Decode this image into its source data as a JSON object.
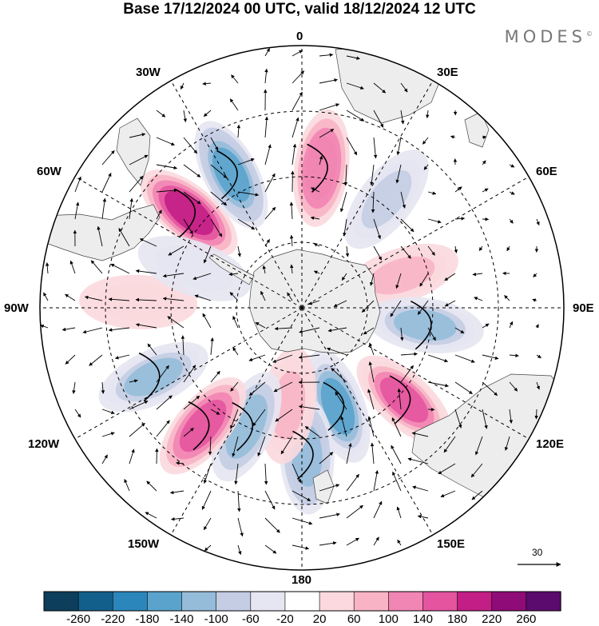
{
  "title": "Base 17/12/2024 00 UTC, valid 18/12/2024 12 UTC",
  "brand": "MODES",
  "brand_mark": "©",
  "longitude_labels": {
    "lon_0": "0",
    "lon_30e": "30E",
    "lon_60e": "60E",
    "lon_90e": "90E",
    "lon_120e": "120E",
    "lon_150e": "150E",
    "lon_180": "180",
    "lon_150w": "150W",
    "lon_120w": "120W",
    "lon_90w": "90W",
    "lon_60w": "60W",
    "lon_30w": "30W"
  },
  "reference_vector": {
    "label": "30"
  },
  "colorbar": {
    "labels": [
      "-260",
      "-220",
      "-180",
      "-140",
      "-100",
      "-60",
      "-20",
      "20",
      "60",
      "100",
      "140",
      "180",
      "220",
      "260"
    ],
    "colors": [
      "#0d3e5c",
      "#135f8c",
      "#2b86bb",
      "#5aa3cc",
      "#95bcd9",
      "#c4cde3",
      "#e6e6f2",
      "#ffffff",
      "#fbd9de",
      "#f8b4c5",
      "#f185b3",
      "#e4549f",
      "#c21e86",
      "#8f0b78",
      "#5b0a6e"
    ]
  },
  "anomaly_centers": [
    {
      "lon": -50,
      "lat": -45,
      "value": 200
    },
    {
      "lon": -28,
      "lat": -44,
      "value": -180
    },
    {
      "lon": 8,
      "lat": -47,
      "value": 150
    },
    {
      "lon": 38,
      "lat": -48,
      "value": -100
    },
    {
      "lon": 72,
      "lat": -58,
      "value": 100
    },
    {
      "lon": 98,
      "lat": -52,
      "value": -140
    },
    {
      "lon": 132,
      "lat": -48,
      "value": 170
    },
    {
      "lon": 160,
      "lat": -58,
      "value": -170
    },
    {
      "lon": 178,
      "lat": -45,
      "value": -150
    },
    {
      "lon": -172,
      "lat": -60,
      "value": 100
    },
    {
      "lon": -155,
      "lat": -50,
      "value": -120
    },
    {
      "lon": -140,
      "lat": -43,
      "value": 160
    },
    {
      "lon": -115,
      "lat": -40,
      "value": -140
    },
    {
      "lon": -88,
      "lat": -40,
      "value": 40
    },
    {
      "lon": -70,
      "lat": -55,
      "value": -60
    }
  ]
}
